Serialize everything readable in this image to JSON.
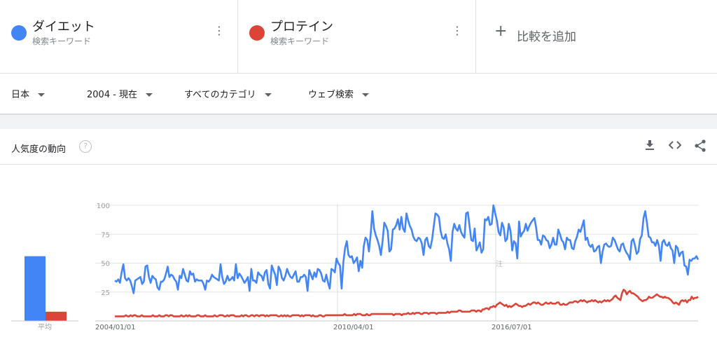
{
  "terms": [
    {
      "name": "ダイエット",
      "type": "検索キーワード",
      "color": "#4285f4"
    },
    {
      "name": "プロテイン",
      "type": "検索キーワード",
      "color": "#db4437"
    }
  ],
  "add_compare_label": "比較を追加",
  "filters": {
    "region": "日本",
    "period": "2004 - 現在",
    "category": "すべてのカテゴリ",
    "search_type": "ウェブ検索"
  },
  "card_title": "人気度の動向",
  "help_glyph": "?",
  "icons": {
    "more": "kebab-menu-icon",
    "add": "plus-icon",
    "help": "help-icon",
    "download": "download-icon",
    "embed": "embed-icon",
    "share": "share-icon"
  },
  "note_marker": "注",
  "chart_data": {
    "type": "line",
    "x_tick_labels": [
      "2004/01/01",
      "2010/04/01",
      "2016/07/01"
    ],
    "y_ticks": [
      100,
      75,
      50,
      25
    ],
    "ylim": [
      0,
      100
    ],
    "grid": true,
    "legend": "top",
    "averages_label": "平均",
    "series": [
      {
        "name": "ダイエット",
        "color": "#4285f4",
        "average": 56,
        "values": [
          35,
          34,
          36,
          33,
          42,
          49,
          37,
          35,
          37,
          35,
          30,
          24,
          35,
          36,
          37,
          38,
          32,
          34,
          47,
          48,
          38,
          33,
          39,
          37,
          36,
          29,
          27,
          34,
          34,
          36,
          41,
          47,
          38,
          40,
          39,
          36,
          34,
          27,
          39,
          37,
          45,
          40,
          35,
          34,
          43,
          40,
          41,
          34,
          36,
          35,
          35,
          35,
          32,
          27,
          35,
          34,
          36,
          40,
          38,
          37,
          36,
          35,
          49,
          38,
          32,
          34,
          39,
          35,
          36,
          38,
          35,
          49,
          37,
          41,
          39,
          36,
          33,
          35,
          38,
          26,
          45,
          35,
          35,
          33,
          42,
          40,
          39,
          35,
          42,
          44,
          32,
          28,
          48,
          44,
          40,
          31,
          47,
          44,
          37,
          35,
          39,
          45,
          41,
          38,
          37,
          40,
          43,
          34,
          34,
          38,
          38,
          40,
          38,
          26,
          44,
          40,
          36,
          42,
          38,
          45,
          44,
          41,
          35,
          34,
          40,
          33,
          28,
          45,
          44,
          42,
          54,
          50,
          48,
          28,
          51,
          63,
          69,
          57,
          55,
          56,
          50,
          52,
          55,
          43,
          52,
          46,
          65,
          72,
          70,
          60,
          75,
          95,
          80,
          74,
          70,
          65,
          57,
          69,
          85,
          82,
          78,
          60,
          62,
          79,
          80,
          83,
          88,
          79,
          90,
          80,
          77,
          93,
          87,
          82,
          79,
          73,
          70,
          69,
          72,
          71,
          67,
          57,
          70,
          72,
          65,
          63,
          70,
          82,
          93,
          92,
          90,
          78,
          72,
          71,
          75,
          67,
          62,
          52,
          77,
          84,
          80,
          78,
          83,
          77,
          74,
          72,
          93,
          94,
          82,
          70,
          69,
          80,
          61,
          64,
          68,
          59,
          62,
          88,
          87,
          90,
          83,
          84,
          100,
          93,
          87,
          77,
          74,
          85,
          81,
          69,
          71,
          84,
          78,
          61,
          69,
          67,
          54,
          86,
          73,
          76,
          78,
          84,
          78,
          82,
          85,
          87,
          89,
          81,
          70,
          70,
          66,
          74,
          73,
          70,
          69,
          63,
          66,
          72,
          66,
          66,
          79,
          75,
          70,
          68,
          62,
          72,
          70,
          70,
          63,
          62,
          69,
          73,
          79,
          77,
          82,
          87,
          70,
          72,
          66,
          64,
          66,
          60,
          61,
          64,
          65,
          50,
          60,
          66,
          67,
          65,
          64,
          65,
          72,
          70,
          66,
          62,
          60,
          66,
          67,
          62,
          59,
          57,
          53,
          69,
          71,
          65,
          58,
          60,
          71,
          74,
          89,
          95,
          85,
          73,
          72,
          68,
          68,
          65,
          70,
          65,
          52,
          68,
          70,
          66,
          65,
          68,
          63,
          61,
          50,
          65,
          63,
          56,
          59,
          60,
          48,
          47,
          40,
          53,
          52,
          54,
          54,
          56,
          53
        ]
      },
      {
        "name": "プロテイン",
        "color": "#db4437",
        "average": 8,
        "values": [
          4,
          4,
          4,
          4,
          4,
          4,
          4,
          5,
          4,
          4,
          5,
          4,
          5,
          5,
          4,
          4,
          4,
          5,
          4,
          4,
          4,
          4,
          4,
          4,
          5,
          4,
          4,
          4,
          5,
          4,
          4,
          4,
          5,
          5,
          4,
          5,
          5,
          4,
          4,
          4,
          4,
          4,
          5,
          4,
          4,
          5,
          4,
          5,
          4,
          4,
          4,
          4,
          5,
          5,
          4,
          4,
          4,
          5,
          4,
          4,
          4,
          4,
          4,
          5,
          4,
          4,
          5,
          5,
          5,
          4,
          4,
          5,
          4,
          5,
          5,
          5,
          4,
          4,
          4,
          4,
          5,
          4,
          5,
          5,
          4,
          4,
          5,
          5,
          4,
          5,
          5,
          4,
          5,
          5,
          5,
          4,
          5,
          4,
          5,
          5,
          5,
          5,
          5,
          4,
          4,
          5,
          4,
          5,
          4,
          5,
          4,
          4,
          5,
          5,
          5,
          5,
          5,
          4,
          5,
          4,
          5,
          5,
          5,
          5,
          4,
          5,
          4,
          4,
          4,
          5,
          5,
          4,
          4,
          5,
          5,
          5,
          5,
          5,
          5,
          5,
          5,
          5,
          5,
          5,
          5,
          6,
          5,
          5,
          5,
          5,
          5,
          6,
          5,
          6,
          6,
          6,
          5,
          5,
          5,
          6,
          5,
          5,
          6,
          6,
          6,
          6,
          6,
          6,
          6,
          6,
          6,
          6,
          6,
          6,
          6,
          6,
          5,
          6,
          6,
          6,
          6,
          5,
          6,
          6,
          6,
          7,
          6,
          6,
          7,
          6,
          7,
          7,
          7,
          6,
          6,
          7,
          7,
          7,
          6,
          7,
          7,
          7,
          7,
          6,
          7,
          7,
          7,
          7,
          7,
          7,
          8,
          7,
          8,
          8,
          8,
          8,
          8,
          9,
          9,
          8,
          8,
          8,
          8,
          8,
          8,
          9,
          9,
          9,
          8,
          9,
          9,
          8,
          10,
          10,
          11,
          11,
          10,
          12,
          12,
          13,
          12,
          14,
          15,
          16,
          15,
          14,
          13,
          14,
          12,
          13,
          12,
          13,
          14,
          15,
          14,
          13,
          13,
          12,
          13,
          13,
          14,
          15,
          14,
          15,
          16,
          16,
          15,
          16,
          15,
          14,
          14,
          15,
          16,
          15,
          15,
          16,
          15,
          15,
          15,
          16,
          16,
          14,
          14,
          15,
          14,
          14,
          15,
          16,
          16,
          16,
          17,
          17,
          16,
          17,
          18,
          17,
          18,
          17,
          16,
          17,
          17,
          18,
          17,
          18,
          17,
          16,
          17,
          16,
          17,
          18,
          17,
          18,
          17,
          18,
          19,
          21,
          22,
          20,
          19,
          18,
          24,
          27,
          26,
          23,
          25,
          26,
          24,
          24,
          23,
          22,
          21,
          19,
          18,
          17,
          18,
          18,
          19,
          21,
          20,
          20,
          21,
          22,
          23,
          22,
          21,
          21,
          20,
          21,
          20,
          20,
          19,
          18,
          16,
          15,
          16,
          15,
          14,
          17,
          18,
          17,
          18,
          16,
          18,
          18,
          21,
          19,
          20,
          20,
          21
        ]
      }
    ]
  }
}
